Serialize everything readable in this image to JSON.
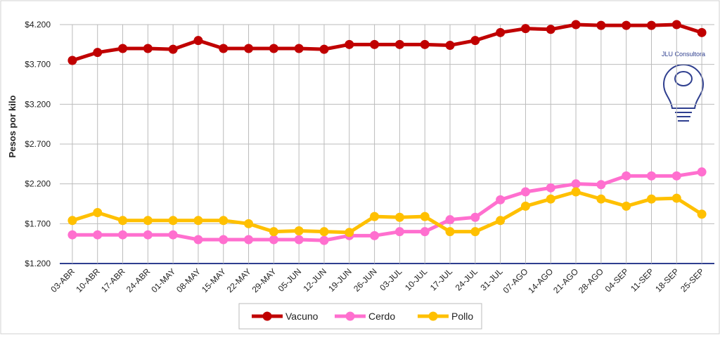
{
  "chart_data": {
    "type": "line",
    "y_label": "Pesos por kilo",
    "watermark": "JLU Consultora",
    "categories": [
      "03-ABR",
      "10-ABR",
      "17-ABR",
      "24-ABR",
      "01-MAY",
      "08-MAY",
      "15-MAY",
      "22-MAY",
      "29-MAY",
      "05-JUN",
      "12-JUN",
      "19-JUN",
      "26-JUN",
      "03-JUL",
      "10-JUL",
      "17-JUL",
      "24-JUL",
      "31-JUL",
      "07-AGO",
      "14-AGO",
      "21-AGO",
      "28-AGO",
      "04-SEP",
      "11-SEP",
      "18-SEP",
      "25-SEP"
    ],
    "series": [
      {
        "name": "Vacuno",
        "color": "#c00000",
        "values": [
          3750,
          3850,
          3900,
          3900,
          3890,
          4000,
          3900,
          3900,
          3900,
          3900,
          3890,
          3950,
          3950,
          3950,
          3950,
          3940,
          4000,
          4100,
          4150,
          4140,
          4200,
          4190,
          4190,
          4190,
          4200,
          4100
        ]
      },
      {
        "name": "Cerdo",
        "color": "#ff6fcf",
        "values": [
          1560,
          1560,
          1560,
          1560,
          1560,
          1500,
          1500,
          1500,
          1500,
          1500,
          1490,
          1550,
          1550,
          1600,
          1600,
          1750,
          1780,
          2000,
          2100,
          2150,
          2200,
          2190,
          2300,
          2300,
          2300,
          2350
        ]
      },
      {
        "name": "Pollo",
        "color": "#ffc000",
        "values": [
          1740,
          1840,
          1740,
          1740,
          1740,
          1740,
          1740,
          1700,
          1600,
          1610,
          1600,
          1590,
          1790,
          1780,
          1790,
          1600,
          1600,
          1740,
          1920,
          2010,
          2100,
          2010,
          1920,
          2010,
          2020,
          1820
        ]
      }
    ],
    "ylim": [
      1200,
      4200
    ],
    "yticks": [
      {
        "value": 1200,
        "label": "$1.200"
      },
      {
        "value": 1700,
        "label": "$1.700"
      },
      {
        "value": 2200,
        "label": "$2.200"
      },
      {
        "value": 2700,
        "label": "$2.700"
      },
      {
        "value": 3200,
        "label": "$3.200"
      },
      {
        "value": 3700,
        "label": "$3.700"
      },
      {
        "value": 4200,
        "label": "$4.200"
      }
    ],
    "grid": true
  }
}
